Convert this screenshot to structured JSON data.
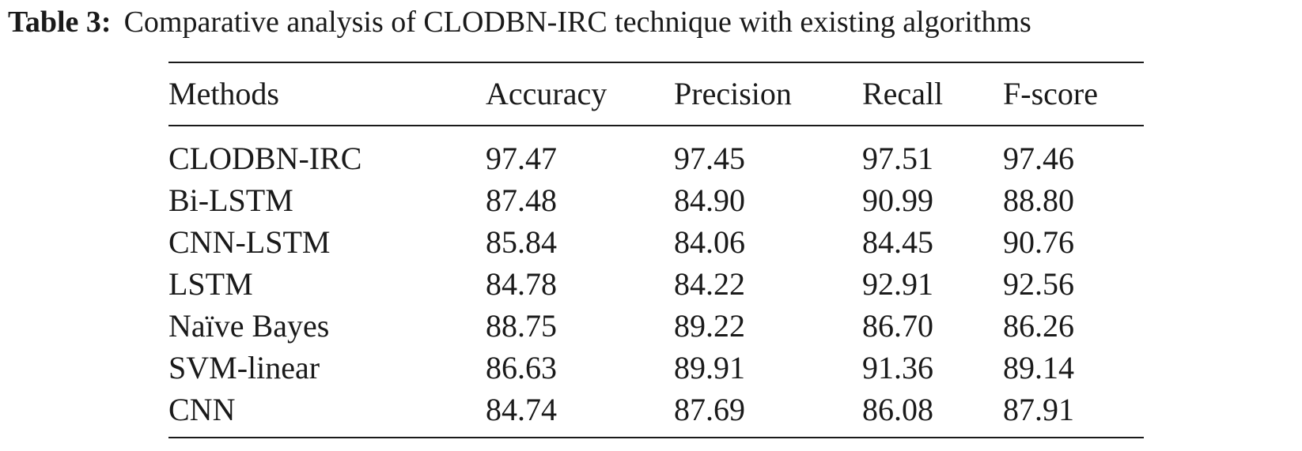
{
  "caption": {
    "label": "Table 3:",
    "text": "Comparative analysis of CLODBN-IRC technique with existing algorithms"
  },
  "table": {
    "headers": [
      "Methods",
      "Accuracy",
      "Precision",
      "Recall",
      "F-score"
    ],
    "rows": [
      [
        "CLODBN-IRC",
        "97.47",
        "97.45",
        "97.51",
        "97.46"
      ],
      [
        "Bi-LSTM",
        "87.48",
        "84.90",
        "90.99",
        "88.80"
      ],
      [
        "CNN-LSTM",
        "85.84",
        "84.06",
        "84.45",
        "90.76"
      ],
      [
        "LSTM",
        "84.78",
        "84.22",
        "92.91",
        "92.56"
      ],
      [
        "Naïve Bayes",
        "88.75",
        "89.22",
        "86.70",
        "86.26"
      ],
      [
        "SVM-linear",
        "86.63",
        "89.91",
        "91.36",
        "89.14"
      ],
      [
        "CNN",
        "84.74",
        "87.69",
        "86.08",
        "87.91"
      ]
    ]
  }
}
